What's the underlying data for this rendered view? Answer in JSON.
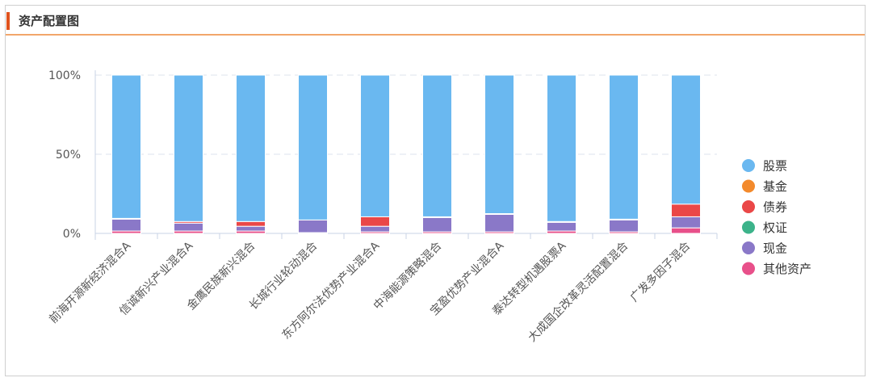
{
  "panel": {
    "title": "资产配置图"
  },
  "chart_data": {
    "type": "bar",
    "stacked": true,
    "percent": true,
    "categories": [
      "前海开源新经济混合A",
      "信诚新兴产业混合A",
      "金鹰民族新兴混合",
      "长城行业轮动混合",
      "东方阿尔法优势产业混合A",
      "中海能源策略混合",
      "宝盈优势产业混合A",
      "泰达转型机遇股票A",
      "大成国企改革灵活配置混合",
      "广发多因子混合"
    ],
    "series": [
      {
        "name": "其他资产",
        "color": "#e8508a",
        "values": [
          1.5,
          1.5,
          1.5,
          0.5,
          1.0,
          1.0,
          1.0,
          1.5,
          1.0,
          3.5
        ]
      },
      {
        "name": "现金",
        "color": "#8a78c8",
        "values": [
          7.5,
          5.0,
          3.0,
          8.0,
          3.5,
          9.0,
          11.0,
          5.5,
          7.5,
          7.0
        ]
      },
      {
        "name": "权证",
        "color": "#3cb38a",
        "values": [
          0,
          0,
          0,
          0,
          0,
          0,
          0,
          0,
          0,
          0
        ]
      },
      {
        "name": "债券",
        "color": "#ea4747",
        "values": [
          0.5,
          1.0,
          3.0,
          0,
          6.0,
          0.5,
          0.5,
          0.5,
          0.5,
          8.0
        ]
      },
      {
        "name": "基金",
        "color": "#f38a2c",
        "values": [
          0,
          0,
          0,
          0,
          0,
          0,
          0,
          0,
          0,
          0
        ]
      },
      {
        "name": "股票",
        "color": "#6ab8f0",
        "values": [
          90.5,
          92.5,
          92.5,
          91.5,
          89.5,
          89.5,
          87.5,
          92.5,
          91.0,
          81.5
        ]
      }
    ],
    "legend_order": [
      "股票",
      "基金",
      "债券",
      "权证",
      "现金",
      "其他资产"
    ],
    "yticks": [
      "0%",
      "50%",
      "100%"
    ],
    "ylim": [
      0,
      100
    ],
    "grid": true,
    "legend_position": "right"
  }
}
